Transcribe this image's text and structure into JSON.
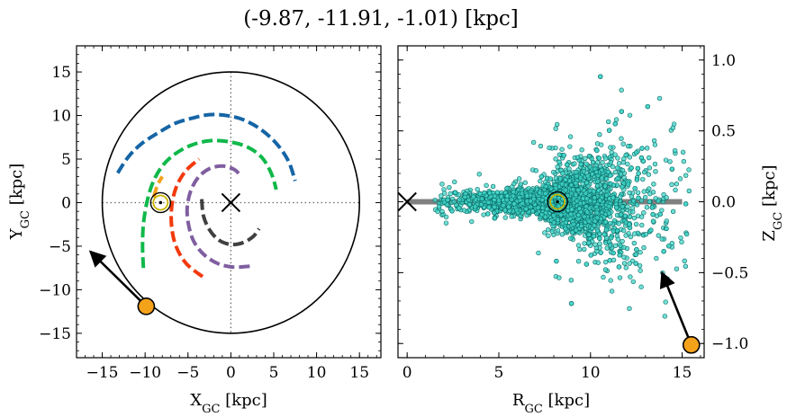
{
  "figure": {
    "title": "(-9.87, -11.91, -1.01) [kpc]"
  },
  "colors": {
    "circle": "#000000",
    "arm_blue": "#1565a6",
    "arm_green": "#0fb84a",
    "arm_red": "#f23a0c",
    "arm_purple": "#7f5ea0",
    "arm_gray": "#404040",
    "arm_orange": "#f5a21b",
    "scatter_fill": "#40d6c8",
    "scatter_edge": "#0a6b66",
    "marker_orange": "#f5a21b",
    "sun_ring": "#c9b400",
    "plane": "#808080"
  },
  "chart_data": [
    {
      "type": "line",
      "panel": "left",
      "xlabel_text": "X",
      "xlabel_sub": "GC",
      "xlabel_unit": " [kpc]",
      "ylabel_text": "Y",
      "ylabel_sub": "GC",
      "ylabel_unit": " [kpc]",
      "xlim": [
        -18,
        17.5
      ],
      "ylim": [
        -17.8,
        18
      ],
      "xticks": [
        -15,
        -10,
        -5,
        0,
        5,
        10,
        15
      ],
      "xtick_labels": [
        "−15",
        "−10",
        "−5",
        "0",
        "5",
        "10",
        "15"
      ],
      "yticks": [
        -15,
        -10,
        -5,
        0,
        5,
        10,
        15
      ],
      "ytick_labels": [
        "−15",
        "−10",
        "−5",
        "0",
        "5",
        "10",
        "15"
      ],
      "outer_circle_radius": 15,
      "galactic_center": [
        0,
        0
      ],
      "reference_lines": {
        "x": 0,
        "y": 0,
        "style": "dotted"
      },
      "series": [
        {
          "color_key": "arm_blue",
          "points": [
            [
              -13.2,
              3.4
            ],
            [
              -12,
              5.2
            ],
            [
              -10.5,
              6.7
            ],
            [
              -8.5,
              8
            ],
            [
              -6.5,
              9.1
            ],
            [
              -4.5,
              9.7
            ],
            [
              -2.5,
              10.1
            ],
            [
              -0.5,
              10
            ],
            [
              1.5,
              9.5
            ],
            [
              3.5,
              8.4
            ],
            [
              5.3,
              6.8
            ],
            [
              6.7,
              4.8
            ],
            [
              7.5,
              2.5
            ]
          ]
        },
        {
          "color_key": "arm_green",
          "points": [
            [
              -10.2,
              -7.5
            ],
            [
              -10.3,
              -5
            ],
            [
              -10.2,
              -2.5
            ],
            [
              -9.8,
              0
            ],
            [
              -9.1,
              2.3
            ],
            [
              -8,
              4.2
            ],
            [
              -6.5,
              5.6
            ],
            [
              -4.6,
              6.6
            ],
            [
              -2.5,
              7.1
            ],
            [
              -0.3,
              7
            ],
            [
              1.9,
              6.4
            ],
            [
              3.6,
              5.2
            ],
            [
              4.7,
              3.4
            ],
            [
              5.3,
              1.5
            ]
          ]
        },
        {
          "color_key": "arm_red",
          "points": [
            [
              -3.3,
              -8.5
            ],
            [
              -5.2,
              -7
            ],
            [
              -6.4,
              -5
            ],
            [
              -6.9,
              -2.8
            ],
            [
              -6.9,
              -0.5
            ],
            [
              -6.4,
              1.7
            ],
            [
              -5.3,
              3.6
            ],
            [
              -3.7,
              5
            ]
          ]
        },
        {
          "color_key": "arm_purple",
          "points": [
            [
              2.2,
              -7.3
            ],
            [
              0.3,
              -7.4
            ],
            [
              -1.5,
              -7
            ],
            [
              -3.1,
              -6
            ],
            [
              -4.3,
              -4.5
            ],
            [
              -4.9,
              -2.7
            ],
            [
              -5.1,
              -0.7
            ],
            [
              -4.7,
              1.3
            ],
            [
              -3.8,
              2.9
            ],
            [
              -2.5,
              3.9
            ],
            [
              -1,
              4.2
            ],
            [
              0.4,
              3.8
            ],
            [
              1.2,
              3
            ]
          ]
        },
        {
          "color_key": "arm_gray",
          "points": [
            [
              -3.4,
              0.4
            ],
            [
              -3.2,
              -1.5
            ],
            [
              -2.5,
              -3.1
            ],
            [
              -1.4,
              -4.3
            ],
            [
              0,
              -4.8
            ],
            [
              1.4,
              -4.6
            ],
            [
              2.6,
              -3.9
            ],
            [
              3.3,
              -3
            ]
          ]
        },
        {
          "color_key": "arm_orange",
          "points": [
            [
              -9,
              0.6
            ],
            [
              -8.6,
              1.9
            ],
            [
              -8,
              3
            ]
          ]
        }
      ],
      "markers": [
        {
          "name": "sun",
          "x": -8.2,
          "y": 0,
          "symbol": "sun-circle"
        },
        {
          "name": "galactic-center",
          "x": 0,
          "y": 0,
          "symbol": "x"
        },
        {
          "name": "object",
          "x": -9.87,
          "y": -11.91,
          "symbol": "orange-circle"
        }
      ],
      "arrow": {
        "from": [
          -9.87,
          -11.91
        ],
        "to": [
          -16.4,
          -5.6
        ]
      }
    },
    {
      "type": "scatter",
      "panel": "right",
      "xlabel_text": "R",
      "xlabel_sub": "GC",
      "xlabel_unit": " [kpc]",
      "ylabel_text": "Z",
      "ylabel_sub": "GC",
      "ylabel_unit": " [kpc]",
      "ylabel_side": "right",
      "xlim": [
        -0.5,
        16.2
      ],
      "ylim": [
        -1.1,
        1.1
      ],
      "xticks": [
        0,
        5,
        10,
        15
      ],
      "xtick_labels": [
        "0",
        "5",
        "10",
        "15"
      ],
      "yticks": [
        -1.0,
        -0.5,
        0.0,
        0.5,
        1.0
      ],
      "ytick_labels": [
        "−1.0",
        "−0.5",
        "0.0",
        "0.5",
        "1.0"
      ],
      "plane_line": {
        "x": [
          0,
          15
        ],
        "y": 0
      },
      "scatter_distribution": {
        "count": 3000,
        "description_key": "disk-stars",
        "r_range": [
          1.5,
          15.5
        ],
        "peak_r": 8.2,
        "z_spread_flares_with_r": true
      },
      "markers": [
        {
          "name": "sun",
          "x": 8.2,
          "y": 0,
          "symbol": "sun-circle"
        },
        {
          "name": "galactic-center",
          "x": 0,
          "y": 0,
          "symbol": "x"
        },
        {
          "name": "object",
          "x": 15.5,
          "y": -1.01,
          "symbol": "orange-circle"
        }
      ],
      "arrow": {
        "from": [
          15.5,
          -1.01
        ],
        "to": [
          13.9,
          -0.5
        ]
      }
    }
  ]
}
